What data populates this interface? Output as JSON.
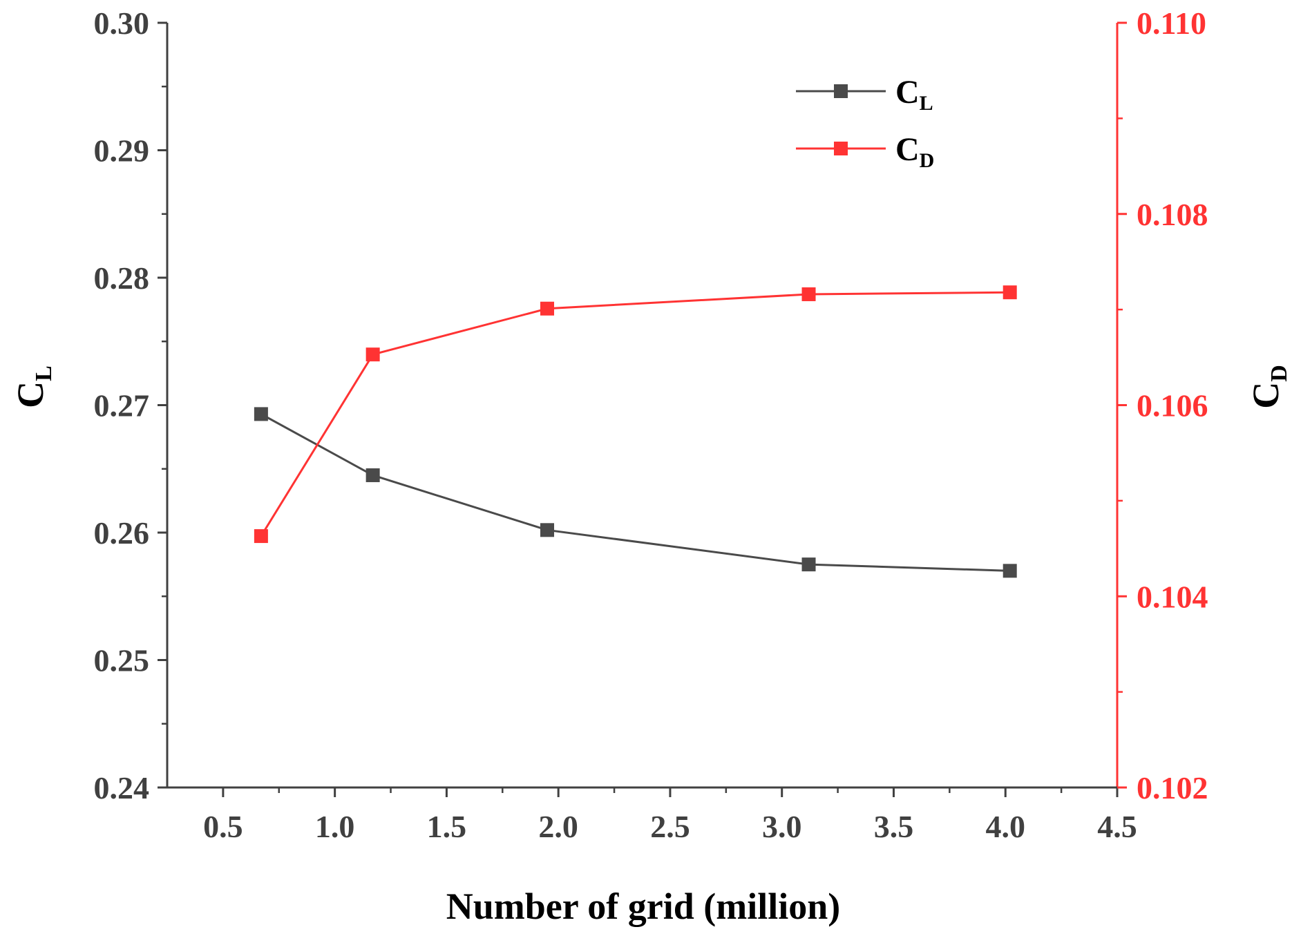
{
  "chart_data": {
    "type": "line",
    "title": "",
    "xlabel": "Number of grid (million)",
    "xlim": [
      0.25,
      4.5
    ],
    "xticks": [
      "0.5",
      "1.0",
      "1.5",
      "2.0",
      "2.5",
      "3.0",
      "3.5",
      "4.0",
      "4.5"
    ],
    "x": [
      0.67,
      1.17,
      1.95,
      3.12,
      4.02
    ],
    "left_axis": {
      "label_main": "C",
      "label_sub": "L",
      "lim": [
        0.24,
        0.3
      ],
      "ticks": [
        "0.24",
        "0.25",
        "0.26",
        "0.27",
        "0.28",
        "0.29",
        "0.30"
      ],
      "color": "#404040"
    },
    "right_axis": {
      "label_main": "C",
      "label_sub": "D",
      "lim": [
        0.102,
        0.11
      ],
      "ticks": [
        "0.102",
        "0.104",
        "0.106",
        "0.108",
        "0.110"
      ],
      "color": "#ff3333"
    },
    "series": [
      {
        "name": "CL",
        "legend_main": "C",
        "legend_sub": "L",
        "axis": "left",
        "color": "#4a4a4a",
        "values": [
          0.2693,
          0.2645,
          0.2602,
          0.2575,
          0.257
        ]
      },
      {
        "name": "CD",
        "legend_main": "C",
        "legend_sub": "D",
        "axis": "right",
        "color": "#ff3333",
        "values": [
          0.10463,
          0.10653,
          0.10701,
          0.10716,
          0.10718
        ]
      }
    ],
    "legend_position": "top-right"
  }
}
